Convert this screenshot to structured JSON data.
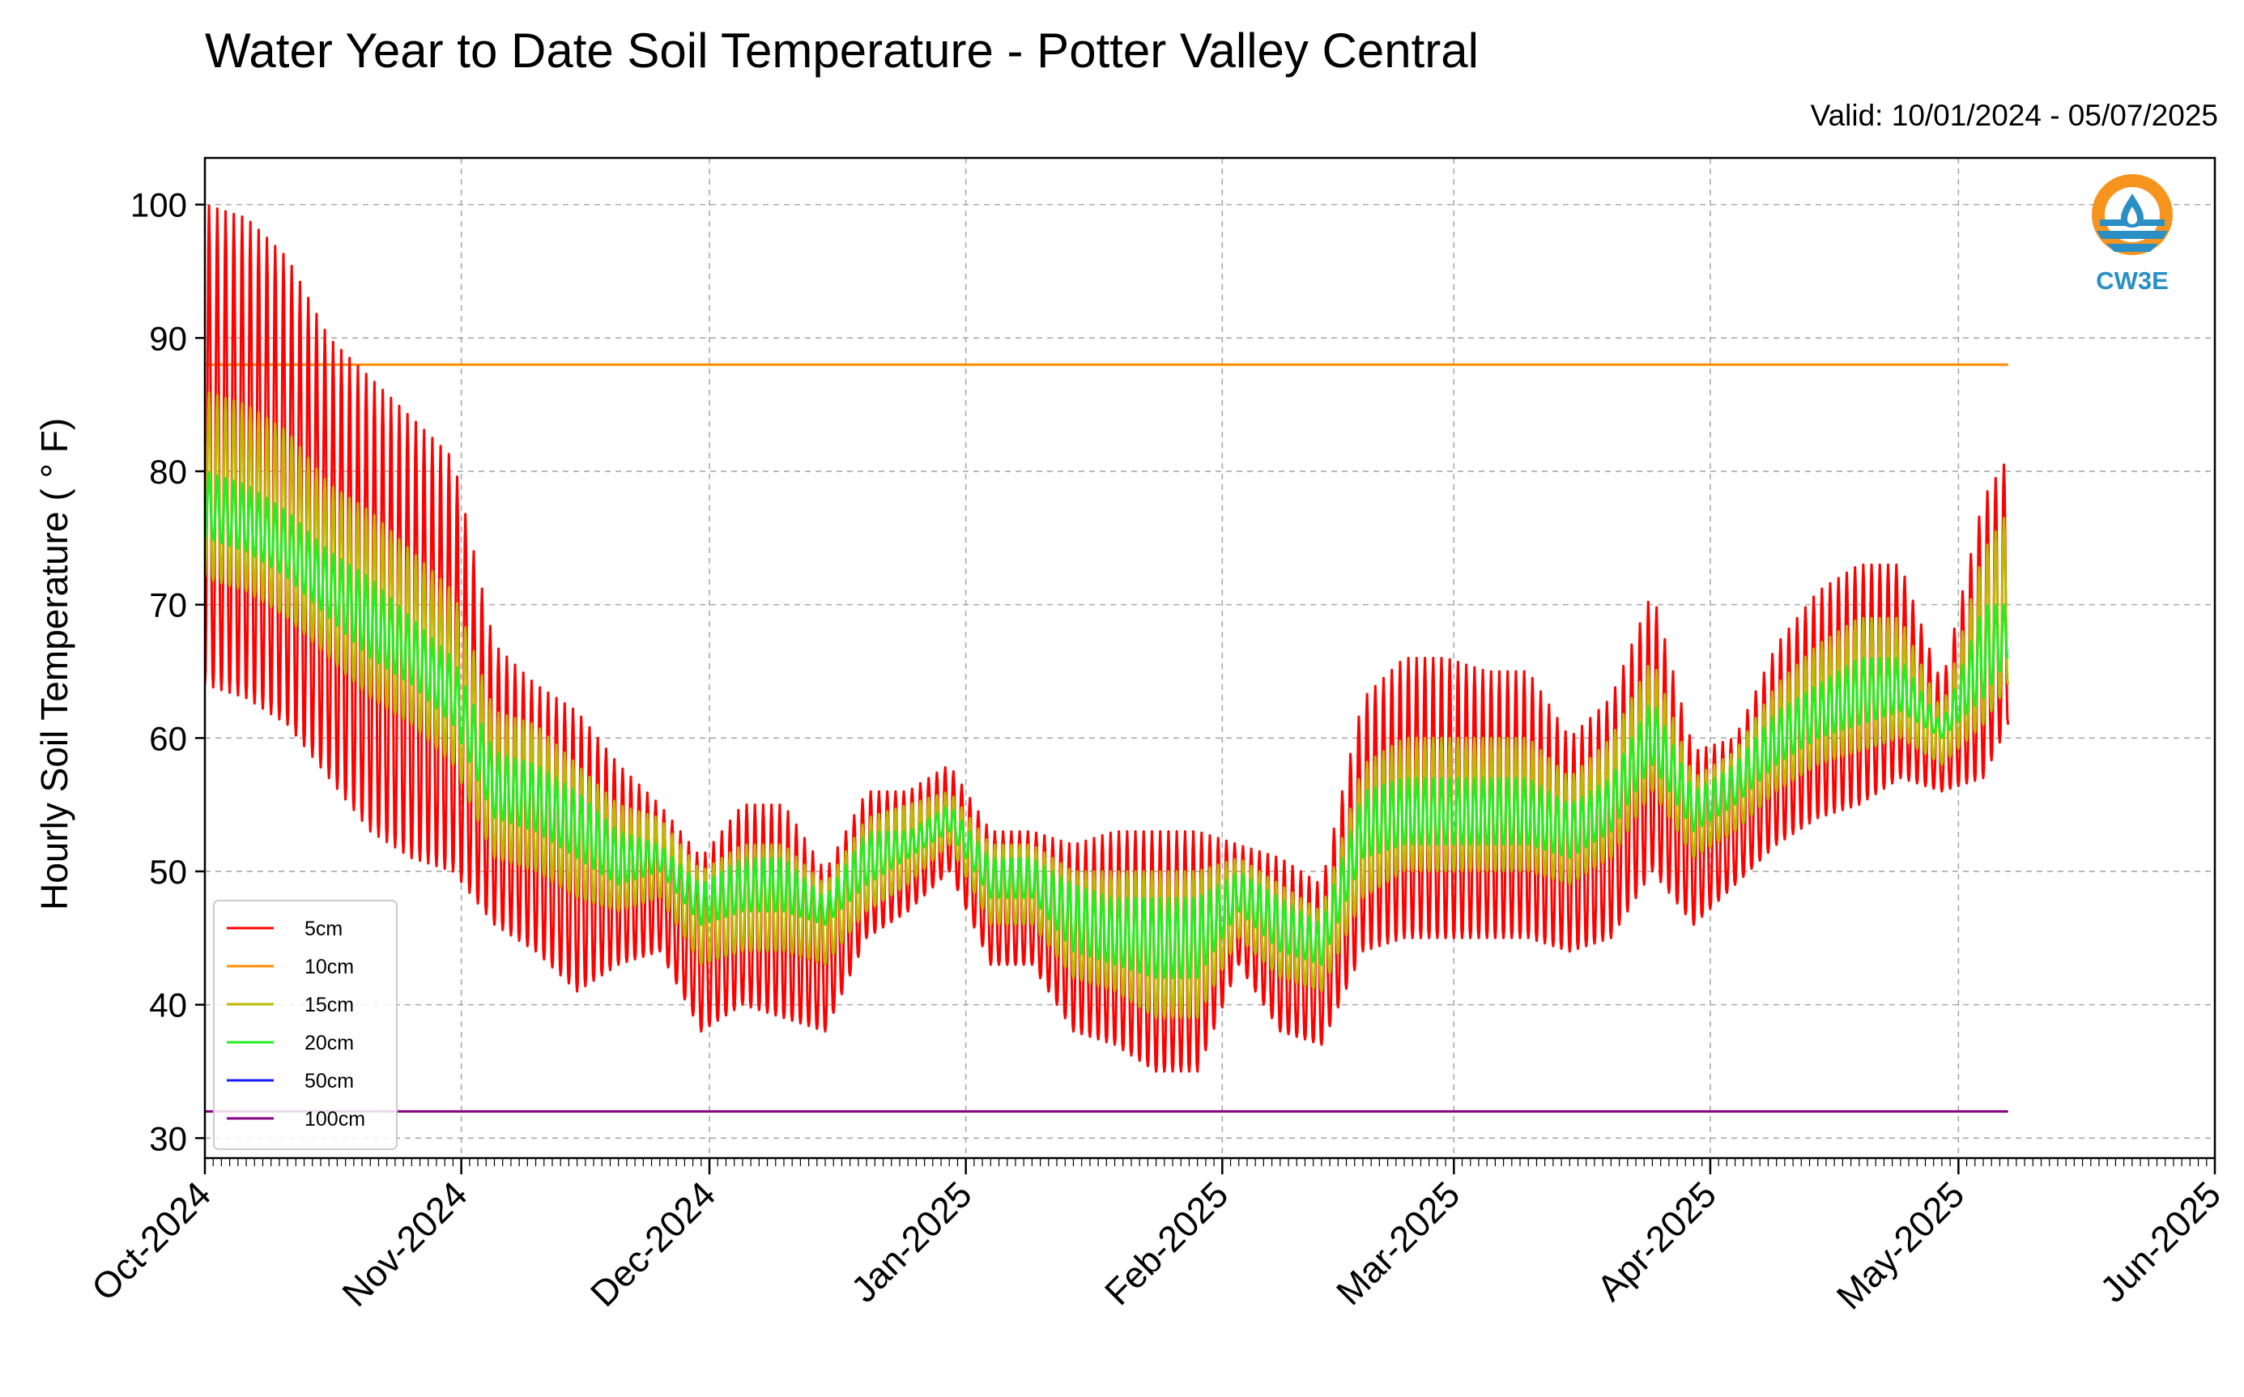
{
  "chart_data": {
    "type": "line",
    "title": "Water Year to Date Soil Temperature - Potter Valley Central",
    "subtitle": "Valid: 10/01/2024 - 05/07/2025",
    "xlabel": "",
    "ylabel": "Hourly Soil Temperature ( ° F)",
    "x_ticks": [
      "Oct-2024",
      "Nov-2024",
      "Dec-2024",
      "Jan-2025",
      "Feb-2025",
      "Mar-2025",
      "Apr-2025",
      "May-2025",
      "Jun-2025"
    ],
    "x_range": [
      "2024-10-01",
      "2025-06-01"
    ],
    "y_ticks": [
      30,
      40,
      50,
      60,
      70,
      80,
      90,
      100
    ],
    "ylim": [
      28.5,
      103.5
    ],
    "grid": true,
    "legend_position": "lower-left",
    "logo_text": "CW3E",
    "series": [
      {
        "name": "5cm",
        "color": "#ff0000",
        "daily_cycle": true,
        "dates": [
          "2024-10-01",
          "2024-10-06",
          "2024-10-11",
          "2024-10-16",
          "2024-10-21",
          "2024-10-26",
          "2024-10-31",
          "2024-11-05",
          "2024-11-10",
          "2024-11-15",
          "2024-11-20",
          "2024-11-25",
          "2024-11-30",
          "2024-12-05",
          "2024-12-10",
          "2024-12-15",
          "2024-12-20",
          "2024-12-25",
          "2024-12-30",
          "2025-01-04",
          "2025-01-09",
          "2025-01-14",
          "2025-01-19",
          "2025-01-24",
          "2025-01-29",
          "2025-02-03",
          "2025-02-08",
          "2025-02-13",
          "2025-02-18",
          "2025-02-23",
          "2025-02-28",
          "2025-03-05",
          "2025-03-10",
          "2025-03-15",
          "2025-03-20",
          "2025-03-25",
          "2025-03-30",
          "2025-04-04",
          "2025-04-09",
          "2025-04-14",
          "2025-04-19",
          "2025-04-24",
          "2025-04-29",
          "2025-05-04",
          "2025-05-07"
        ],
        "daily_max": [
          100,
          99,
          96,
          90,
          87,
          84,
          81,
          67,
          64,
          62,
          58,
          55,
          51,
          55,
          55,
          50,
          56,
          56,
          58,
          53,
          53,
          52,
          53,
          53,
          53,
          52,
          51,
          49,
          63,
          66,
          66,
          65,
          65,
          60,
          63,
          71,
          59,
          60,
          67,
          71,
          73,
          73,
          64,
          78,
          81
        ],
        "daily_min": [
          64,
          63,
          61,
          57,
          53,
          51,
          50,
          46,
          44,
          41,
          43,
          44,
          38,
          40,
          39,
          38,
          45,
          47,
          50,
          43,
          43,
          38,
          37,
          35,
          35,
          43,
          38,
          37,
          44,
          45,
          45,
          45,
          45,
          44,
          45,
          50,
          46,
          49,
          52,
          54,
          55,
          57,
          56,
          57,
          61
        ]
      },
      {
        "name": "10cm",
        "color": "#ff8c00",
        "daily_cycle": false,
        "dates": [
          "2024-10-01",
          "2025-05-07"
        ],
        "values": [
          88,
          88
        ]
      },
      {
        "name": "15cm",
        "color": "#bdb800",
        "daily_cycle": true,
        "dates": [
          "2024-10-01",
          "2024-10-06",
          "2024-10-11",
          "2024-10-16",
          "2024-10-21",
          "2024-10-26",
          "2024-10-31",
          "2024-11-05",
          "2024-11-10",
          "2024-11-15",
          "2024-11-20",
          "2024-11-25",
          "2024-11-30",
          "2024-12-05",
          "2024-12-10",
          "2024-12-15",
          "2024-12-20",
          "2024-12-25",
          "2024-12-30",
          "2025-01-04",
          "2025-01-09",
          "2025-01-14",
          "2025-01-19",
          "2025-01-24",
          "2025-01-29",
          "2025-02-03",
          "2025-02-08",
          "2025-02-13",
          "2025-02-18",
          "2025-02-23",
          "2025-02-28",
          "2025-03-05",
          "2025-03-10",
          "2025-03-15",
          "2025-03-20",
          "2025-03-25",
          "2025-03-30",
          "2025-04-04",
          "2025-04-09",
          "2025-04-14",
          "2025-04-19",
          "2025-04-24",
          "2025-04-29",
          "2025-05-04",
          "2025-05-07"
        ],
        "daily_max": [
          86,
          85,
          83,
          79,
          77,
          74,
          71,
          62,
          61,
          58,
          55,
          54,
          50,
          52,
          52,
          49,
          54,
          55,
          56,
          52,
          52,
          50,
          50,
          50,
          50,
          51,
          49,
          47,
          58,
          60,
          60,
          60,
          60,
          57,
          60,
          66,
          57,
          59,
          64,
          67,
          69,
          69,
          62,
          74,
          77
        ],
        "daily_min": [
          72,
          71,
          69,
          66,
          63,
          61,
          58,
          51,
          50,
          48,
          47,
          48,
          43,
          44,
          44,
          43,
          47,
          49,
          52,
          46,
          46,
          42,
          41,
          39,
          39,
          45,
          42,
          41,
          48,
          50,
          50,
          50,
          50,
          49,
          51,
          56,
          51,
          53,
          56,
          58,
          59,
          60,
          58,
          61,
          64
        ]
      },
      {
        "name": "20cm",
        "color": "#22ee22",
        "daily_cycle": true,
        "dates": [
          "2024-10-01",
          "2024-10-06",
          "2024-10-11",
          "2024-10-16",
          "2024-10-21",
          "2024-10-26",
          "2024-10-31",
          "2024-11-05",
          "2024-11-10",
          "2024-11-15",
          "2024-11-20",
          "2024-11-25",
          "2024-11-30",
          "2024-12-05",
          "2024-12-10",
          "2024-12-15",
          "2024-12-20",
          "2024-12-25",
          "2024-12-30",
          "2025-01-04",
          "2025-01-09",
          "2025-01-14",
          "2025-01-19",
          "2025-01-24",
          "2025-01-29",
          "2025-02-03",
          "2025-02-08",
          "2025-02-13",
          "2025-02-18",
          "2025-02-23",
          "2025-02-28",
          "2025-03-05",
          "2025-03-10",
          "2025-03-15",
          "2025-03-20",
          "2025-03-25",
          "2025-03-30",
          "2025-04-04",
          "2025-04-09",
          "2025-04-14",
          "2025-04-19",
          "2025-04-24",
          "2025-04-29",
          "2025-05-04",
          "2025-05-07"
        ],
        "daily_max": [
          80,
          79,
          77,
          74,
          72,
          69,
          66,
          59,
          58,
          56,
          53,
          52,
          49,
          51,
          51,
          48,
          53,
          53,
          55,
          51,
          51,
          49,
          48,
          48,
          48,
          50,
          48,
          46,
          56,
          57,
          57,
          57,
          57,
          55,
          57,
          63,
          56,
          58,
          62,
          64,
          66,
          66,
          61,
          70,
          70
        ],
        "daily_min": [
          75,
          74,
          72,
          69,
          66,
          64,
          61,
          54,
          53,
          51,
          49,
          50,
          46,
          47,
          47,
          46,
          49,
          51,
          53,
          48,
          48,
          44,
          43,
          42,
          42,
          47,
          44,
          43,
          51,
          52,
          52,
          52,
          52,
          51,
          53,
          58,
          53,
          55,
          58,
          60,
          61,
          62,
          60,
          63,
          66
        ]
      },
      {
        "name": "50cm",
        "color": "#1a1aff",
        "daily_cycle": false,
        "dates": [],
        "values": []
      },
      {
        "name": "100cm",
        "color": "#800080",
        "daily_cycle": false,
        "dates": [
          "2024-10-01",
          "2025-05-07"
        ],
        "values": [
          32,
          32
        ]
      }
    ]
  }
}
